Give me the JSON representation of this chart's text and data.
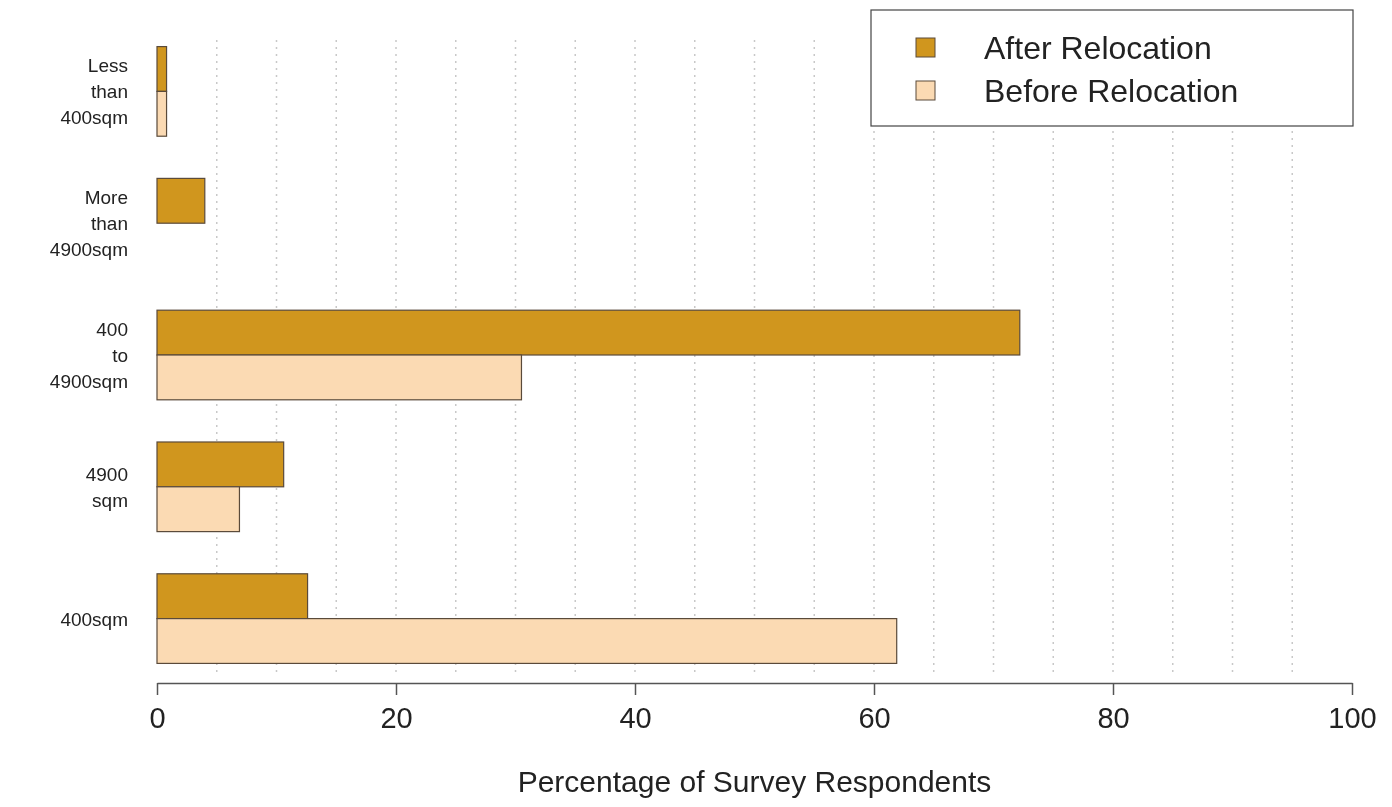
{
  "chart_data": {
    "type": "bar",
    "orientation": "horizontal",
    "xlabel": "Percentage of Survey Respondents",
    "categories": [
      "Less than 400sqm",
      "More than 4900sqm",
      "400 to 4900sqm",
      "4900 sqm",
      "400sqm"
    ],
    "series": [
      {
        "name": "After Relocation",
        "color": "#d0961e",
        "values": [
          0.8,
          4.0,
          72.2,
          10.6,
          12.6
        ]
      },
      {
        "name": "Before Relocation",
        "color": "#fbdab3",
        "values": [
          0.8,
          0,
          30.5,
          6.9,
          61.9
        ]
      }
    ],
    "xlim": [
      0,
      100
    ],
    "xticks": [
      0,
      {
        "value": 5,
        "label": null
      },
      {
        "value": 10,
        "label": null
      },
      {
        "value": 15,
        "label": null
      },
      20,
      {
        "value": 25,
        "label": null
      },
      {
        "value": 30,
        "label": null
      },
      {
        "value": 35,
        "label": null
      },
      40,
      {
        "value": 45,
        "label": null
      },
      {
        "value": 50,
        "label": null
      },
      {
        "value": 55,
        "label": null
      },
      60,
      {
        "value": 65,
        "label": null
      },
      {
        "value": 70,
        "label": null
      },
      {
        "value": 75,
        "label": null
      },
      80,
      {
        "value": 85,
        "label": null
      },
      {
        "value": 90,
        "label": null
      },
      {
        "value": 95,
        "label": null
      },
      100
    ],
    "grid": "x",
    "legend": "top right"
  }
}
